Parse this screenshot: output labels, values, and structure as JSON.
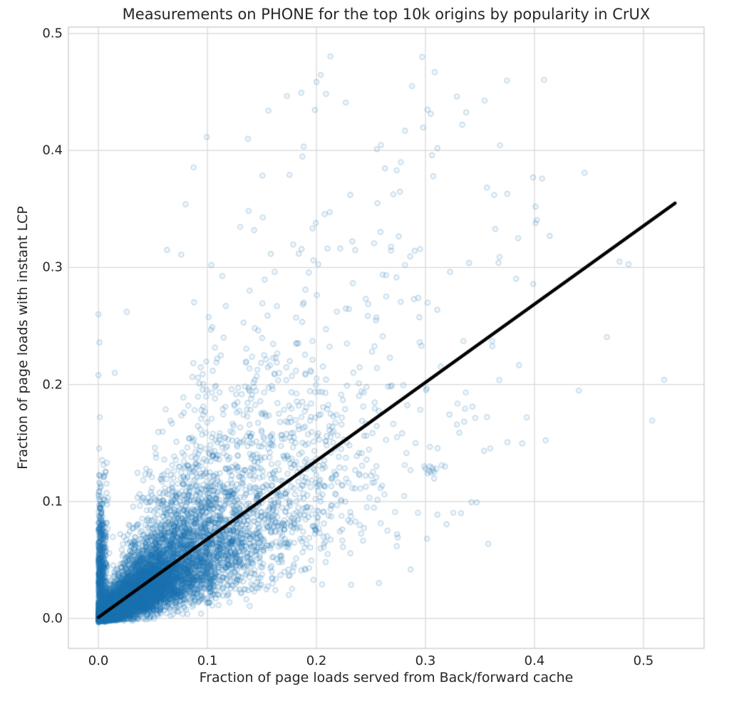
{
  "figure": {
    "background_color": "#ffffff",
    "text_color": "#262626"
  },
  "chart_data": {
    "type": "scatter",
    "title": "Measurements on PHONE for the top 10k origins by popularity in CrUX",
    "xlabel": "Fraction of page loads served from Back/forward cache",
    "ylabel": "Fraction of page loads with instant LCP",
    "x_ticks": [
      0.0,
      0.1,
      0.2,
      0.3,
      0.4,
      0.5
    ],
    "x_tick_labels": [
      "0.0",
      "0.1",
      "0.2",
      "0.3",
      "0.4",
      "0.5"
    ],
    "y_ticks": [
      0.0,
      0.1,
      0.2,
      0.3,
      0.4,
      0.5
    ],
    "y_tick_labels": [
      "0.0",
      "0.1",
      "0.2",
      "0.3",
      "0.4",
      "0.5"
    ],
    "xlim": [
      -0.0275,
      0.5556
    ],
    "ylim": [
      -0.0256,
      0.5055
    ],
    "grid": true,
    "grid_color": "#d9d9d9",
    "spine_color": "#cccccc",
    "n_points_depicted": 10000,
    "marker": {
      "color": "#1f77b4",
      "edge_alpha": 0.25,
      "fill_alpha": 0.07,
      "radius": 3.5,
      "edge_width": 1.4
    },
    "regression_line": {
      "color": "#000000",
      "width": 4.5,
      "x1": 0.0,
      "y1": 0.001,
      "x2": 0.529,
      "y2": 0.355
    },
    "outlier_points": [
      [
        0.297,
        0.48
      ],
      [
        0.156,
        0.434
      ],
      [
        0.311,
        0.402
      ],
      [
        0.306,
        0.396
      ],
      [
        0.446,
        0.381
      ],
      [
        0.407,
        0.376
      ],
      [
        0.375,
        0.363
      ],
      [
        0.363,
        0.362
      ],
      [
        0.401,
        0.352
      ],
      [
        0.401,
        0.338
      ],
      [
        0.414,
        0.327
      ],
      [
        0.364,
        0.333
      ],
      [
        0.385,
        0.325
      ],
      [
        0.478,
        0.305
      ],
      [
        0.368,
        0.309
      ],
      [
        0.367,
        0.304
      ],
      [
        0.08,
        0.354
      ],
      [
        0.063,
        0.315
      ],
      [
        0.076,
        0.311
      ],
      [
        0.519,
        0.204
      ],
      [
        0.0,
        0.26
      ],
      [
        0.026,
        0.262
      ],
      [
        0.001,
        0.236
      ],
      [
        0.0,
        0.208
      ],
      [
        0.015,
        0.21
      ],
      [
        0.256,
        0.355
      ],
      [
        0.302,
        0.27
      ],
      [
        0.3,
        0.128
      ],
      [
        0.303,
        0.126
      ],
      [
        0.306,
        0.129
      ],
      [
        0.308,
        0.125
      ],
      [
        0.304,
        0.13
      ],
      [
        0.307,
        0.127
      ],
      [
        0.31,
        0.128
      ],
      [
        0.302,
        0.124
      ],
      [
        0.305,
        0.125
      ],
      [
        0.299,
        0.13
      ],
      [
        0.315,
        0.131
      ],
      [
        0.318,
        0.13
      ]
    ],
    "cloud_generator": {
      "seed": 42,
      "n_core": 9300,
      "x_lambda": 0.058,
      "x_cap": 0.545,
      "ratio_median": 0.62,
      "ratio_sigma": 0.55,
      "jitter": 0.005,
      "n_zero_strip": 700,
      "strip_x_sigma": 0.0035,
      "strip_y_sigma": 0.05,
      "strip_y_cap": 0.27
    }
  }
}
